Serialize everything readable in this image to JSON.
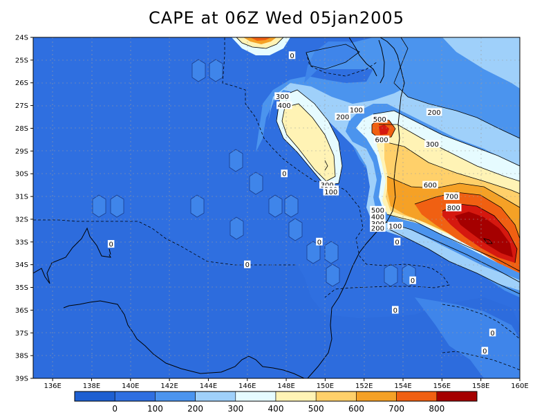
{
  "title": "CAPE at 06Z Wed 05jan2005",
  "colors": {
    "background_cape_0": "#2f6fe0",
    "bands": [
      "#1e5fd1",
      "#2f6fe0",
      "#4b94ee",
      "#9fd0fa",
      "#e6fbff",
      "#fff3b5",
      "#ffd06a",
      "#f5a126",
      "#f06012",
      "#d5180f",
      "#a50000"
    ],
    "contour": "#000000",
    "grid": "#9e9e9e"
  },
  "map": {
    "lon_range": [
      135,
      160
    ],
    "lat_range": [
      -39,
      -24
    ],
    "x_ticks": [
      "136E",
      "138E",
      "140E",
      "142E",
      "144E",
      "146E",
      "148E",
      "150E",
      "152E",
      "154E",
      "156E",
      "158E",
      "160E"
    ],
    "y_ticks": [
      "24S",
      "25S",
      "26S",
      "27S",
      "28S",
      "29S",
      "30S",
      "31S",
      "32S",
      "33S",
      "34S",
      "35S",
      "36S",
      "37S",
      "38S",
      "39S"
    ],
    "contour_labels": [
      {
        "text": "0",
        "lon": 148.3,
        "lat": -24.8
      },
      {
        "text": "300",
        "lon": 147.8,
        "lat": -26.6
      },
      {
        "text": "400",
        "lon": 147.9,
        "lat": -27.0
      },
      {
        "text": "100",
        "lon": 151.6,
        "lat": -27.2
      },
      {
        "text": "200",
        "lon": 150.9,
        "lat": -27.5
      },
      {
        "text": "500",
        "lon": 152.8,
        "lat": -27.6
      },
      {
        "text": "200",
        "lon": 155.6,
        "lat": -27.3
      },
      {
        "text": "600",
        "lon": 152.9,
        "lat": -28.5
      },
      {
        "text": "300",
        "lon": 155.5,
        "lat": -28.7
      },
      {
        "text": "0",
        "lon": 147.9,
        "lat": -30.0
      },
      {
        "text": "300",
        "lon": 150.1,
        "lat": -30.5
      },
      {
        "text": "200",
        "lon": 150.3,
        "lat": -30.7
      },
      {
        "text": "100",
        "lon": 150.3,
        "lat": -30.8
      },
      {
        "text": "600",
        "lon": 155.4,
        "lat": -30.5
      },
      {
        "text": "700",
        "lon": 156.5,
        "lat": -31.0
      },
      {
        "text": "800",
        "lon": 156.6,
        "lat": -31.5
      },
      {
        "text": "500",
        "lon": 152.7,
        "lat": -31.6
      },
      {
        "text": "400",
        "lon": 152.7,
        "lat": -31.9
      },
      {
        "text": "300",
        "lon": 152.7,
        "lat": -32.2
      },
      {
        "text": "200",
        "lon": 152.7,
        "lat": -32.4
      },
      {
        "text": "100",
        "lon": 153.6,
        "lat": -32.3
      },
      {
        "text": "0",
        "lon": 139.0,
        "lat": -33.1
      },
      {
        "text": "0",
        "lon": 149.7,
        "lat": -33.0
      },
      {
        "text": "0",
        "lon": 153.7,
        "lat": -33.0
      },
      {
        "text": "0",
        "lon": 146.0,
        "lat": -34.0
      },
      {
        "text": "0",
        "lon": 154.5,
        "lat": -34.7
      },
      {
        "text": "0",
        "lon": 153.6,
        "lat": -36.0
      },
      {
        "text": "0",
        "lon": 158.6,
        "lat": -37.0
      },
      {
        "text": "0",
        "lon": 158.2,
        "lat": -37.8
      }
    ]
  },
  "colorbar": {
    "labels": [
      "0",
      "100",
      "200",
      "300",
      "400",
      "500",
      "600",
      "700",
      "800"
    ]
  }
}
